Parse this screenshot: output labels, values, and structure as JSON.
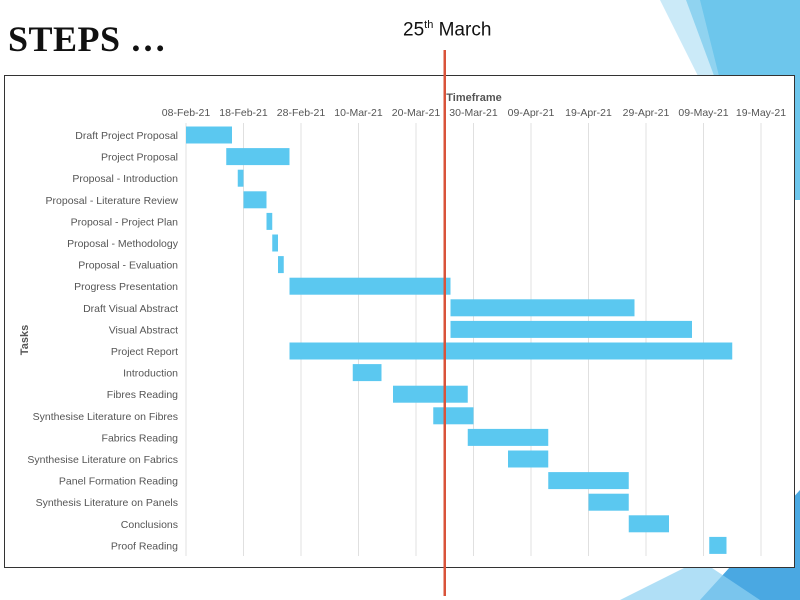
{
  "slide": {
    "title": "STEPS …",
    "marker_label_main": "25",
    "marker_label_sup": "th",
    "marker_label_rest": " March"
  },
  "colors": {
    "bar": "#5bc8f0",
    "marker": "#d9533a",
    "grid": "#e0e0e0",
    "accent": "#4fb3e8"
  },
  "chart_data": {
    "type": "gantt",
    "title": "Timeframe",
    "xlabel": "Timeframe",
    "ylabel": "Tasks",
    "x_tick_labels": [
      "08-Feb-21",
      "18-Feb-21",
      "28-Feb-21",
      "10-Mar-21",
      "20-Mar-21",
      "30-Mar-21",
      "09-Apr-21",
      "19-Apr-21",
      "29-Apr-21",
      "09-May-21",
      "19-May-21"
    ],
    "xlim": [
      "2021-02-08",
      "2021-05-19"
    ],
    "grid": true,
    "marker": {
      "date": "2021-03-25",
      "label": "25th March"
    },
    "tasks": [
      {
        "name": "Draft Project Proposal",
        "start": "2021-02-08",
        "end": "2021-02-16"
      },
      {
        "name": "Project Proposal",
        "start": "2021-02-15",
        "end": "2021-02-26"
      },
      {
        "name": "Proposal - Introduction",
        "start": "2021-02-17",
        "end": "2021-02-18"
      },
      {
        "name": "Proposal - Literature Review",
        "start": "2021-02-18",
        "end": "2021-02-22"
      },
      {
        "name": "Proposal - Project Plan",
        "start": "2021-02-22",
        "end": "2021-02-23"
      },
      {
        "name": "Proposal - Methodology",
        "start": "2021-02-23",
        "end": "2021-02-24"
      },
      {
        "name": "Proposal - Evaluation",
        "start": "2021-02-24",
        "end": "2021-02-25"
      },
      {
        "name": "Progress Presentation",
        "start": "2021-02-26",
        "end": "2021-03-26"
      },
      {
        "name": "Draft Visual Abstract",
        "start": "2021-03-26",
        "end": "2021-04-27"
      },
      {
        "name": "Visual Abstract",
        "start": "2021-03-26",
        "end": "2021-05-07"
      },
      {
        "name": "Project Report",
        "start": "2021-02-26",
        "end": "2021-05-14"
      },
      {
        "name": "Introduction",
        "start": "2021-03-09",
        "end": "2021-03-14"
      },
      {
        "name": "Fibres Reading",
        "start": "2021-03-16",
        "end": "2021-03-29"
      },
      {
        "name": "Synthesise Literature on Fibres",
        "start": "2021-03-23",
        "end": "2021-03-30"
      },
      {
        "name": "Fabrics Reading",
        "start": "2021-03-29",
        "end": "2021-04-12"
      },
      {
        "name": "Synthesise Literature on Fabrics",
        "start": "2021-04-05",
        "end": "2021-04-12"
      },
      {
        "name": "Panel Formation Reading",
        "start": "2021-04-12",
        "end": "2021-04-26"
      },
      {
        "name": "Synthesis Literature on Panels",
        "start": "2021-04-19",
        "end": "2021-04-26"
      },
      {
        "name": "Conclusions",
        "start": "2021-04-26",
        "end": "2021-05-03"
      },
      {
        "name": "Proof Reading",
        "start": "2021-05-10",
        "end": "2021-05-13"
      }
    ]
  }
}
